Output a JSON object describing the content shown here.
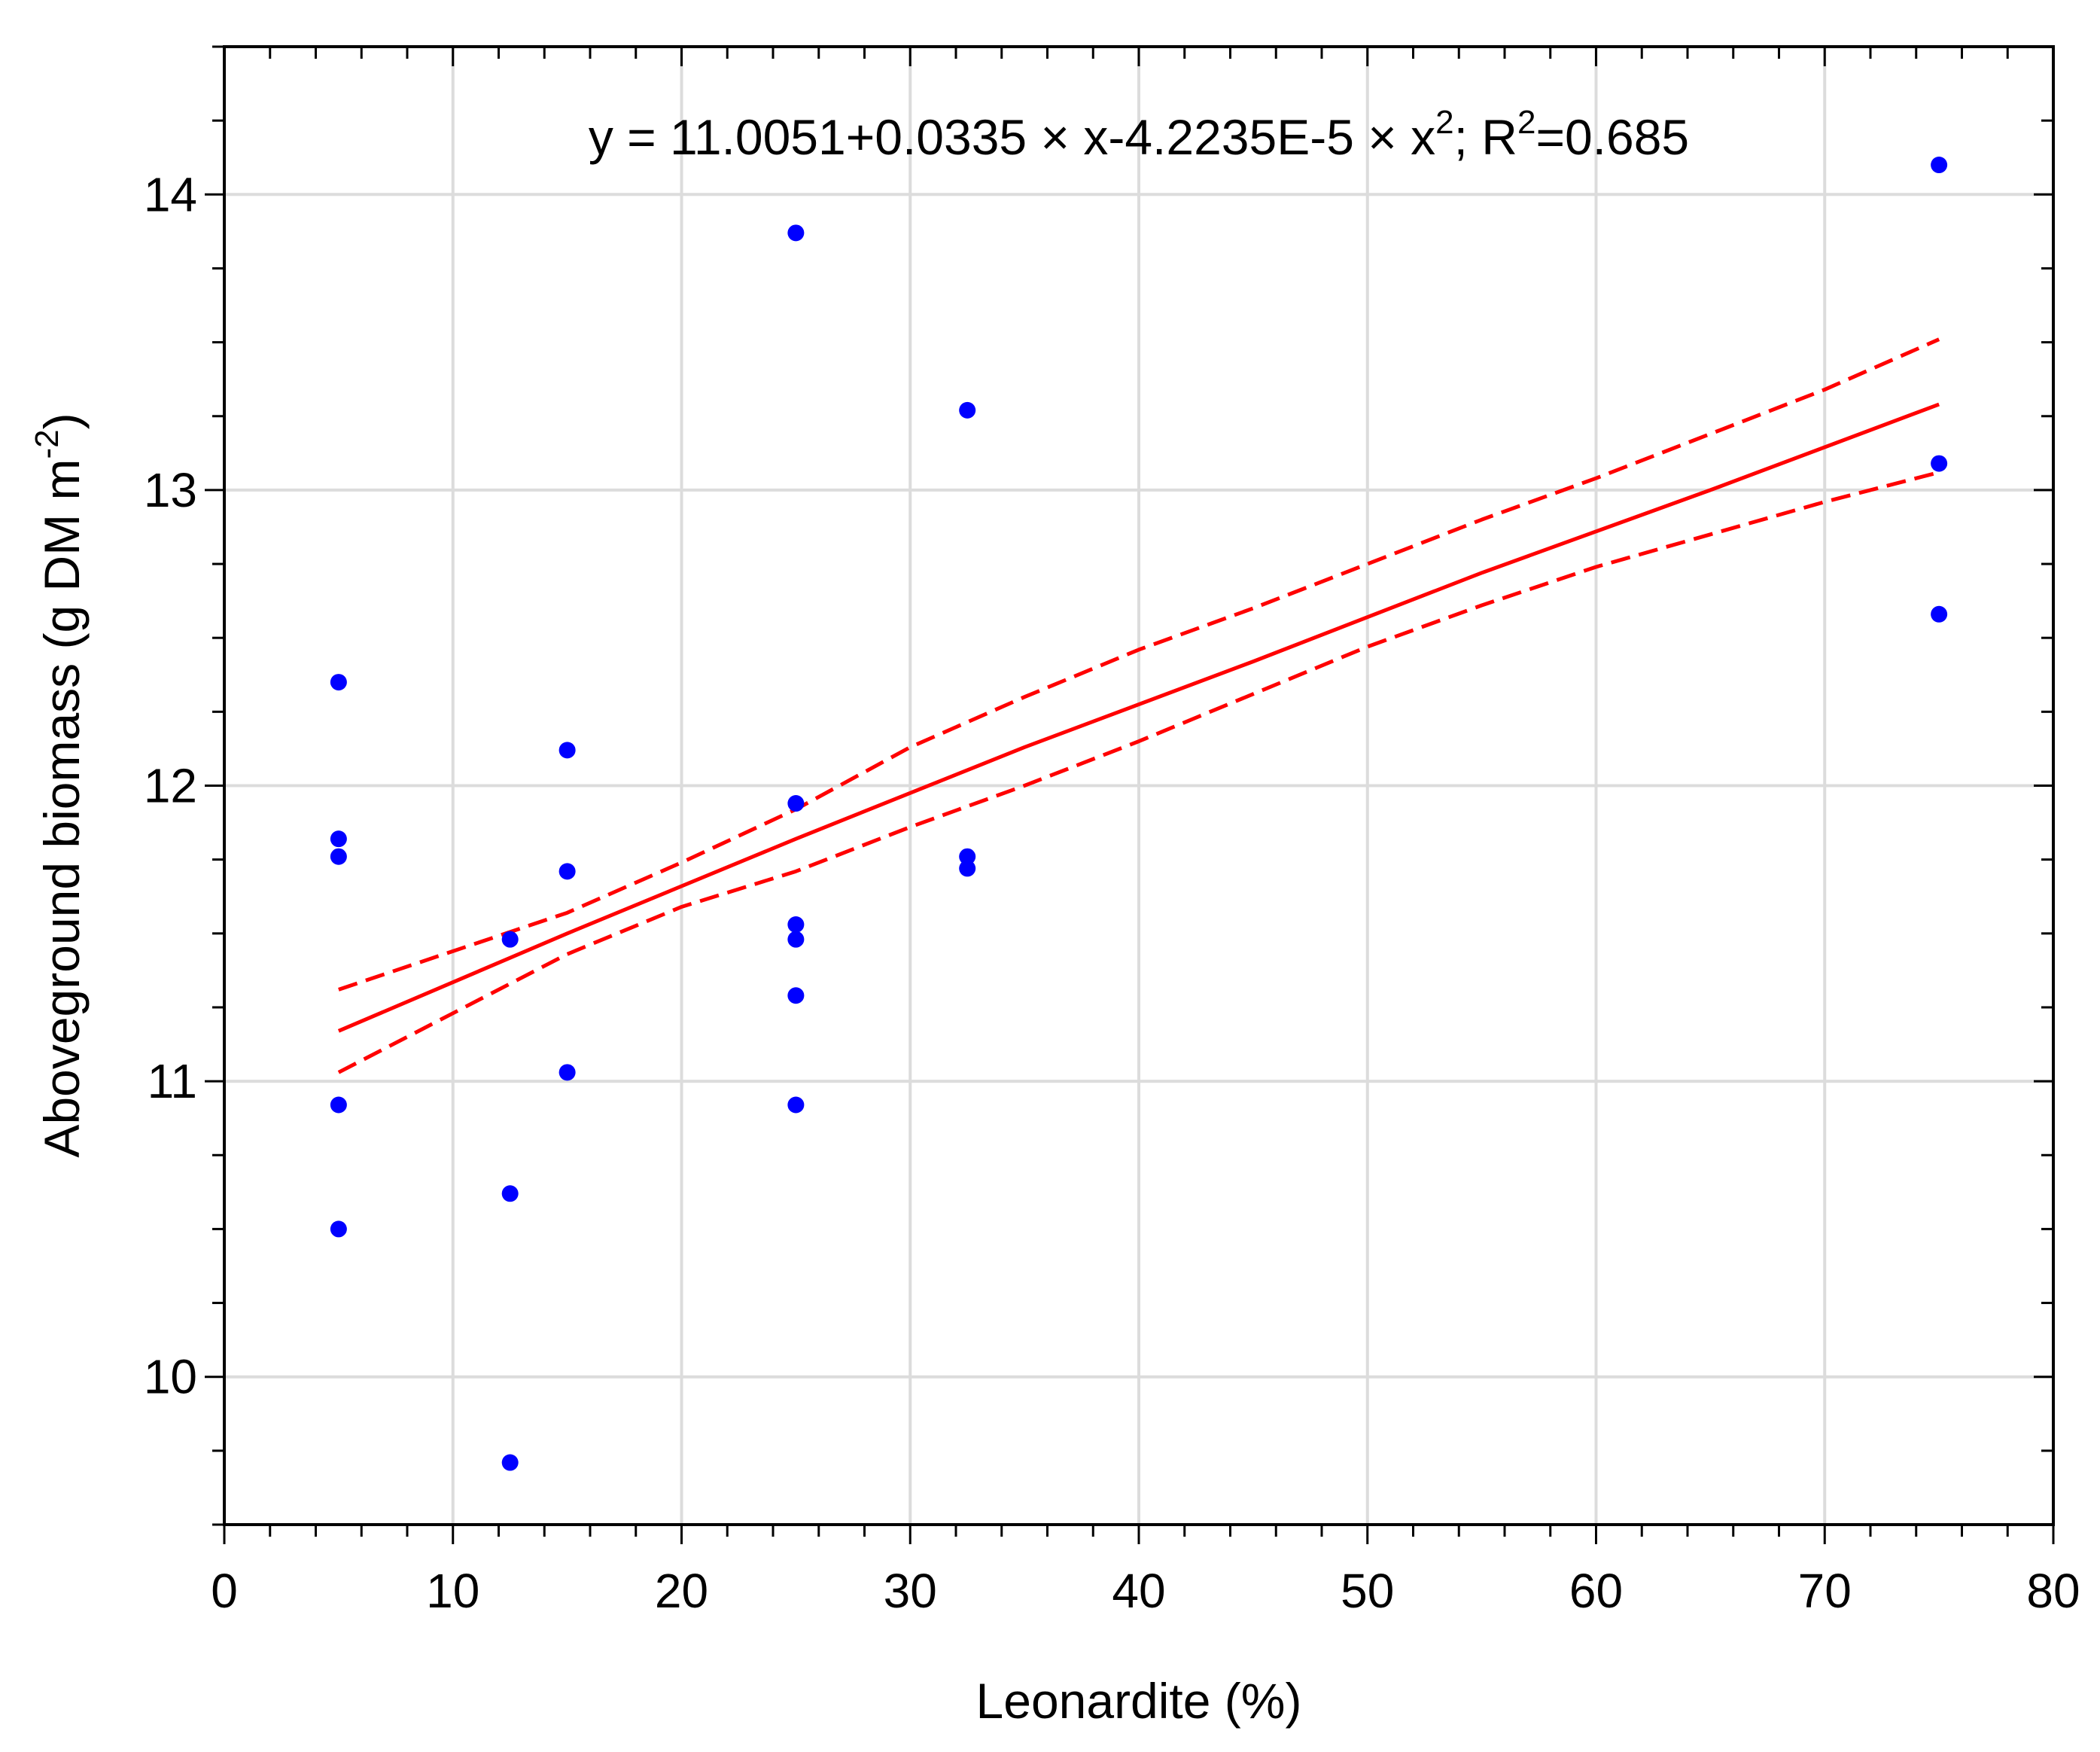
{
  "chart_data": {
    "type": "scatter",
    "title": "",
    "equation": {
      "lead": "y = 11.0051+0.0335 × x-4.2235E-5 × x",
      "exp1": "2",
      "mid": "; R",
      "exp2": "2",
      "tail": "=0.685"
    },
    "xlabel": "Leonardite (%)",
    "ylabel": {
      "main": "Aboveground biomass (g DM m",
      "exp": "-2",
      "close": ")"
    },
    "xlim": [
      0,
      80
    ],
    "ylim": [
      9.5,
      14.5
    ],
    "x_ticks": [
      0,
      10,
      20,
      30,
      40,
      50,
      60,
      70,
      80
    ],
    "y_ticks": [
      10,
      11,
      12,
      13,
      14
    ],
    "x_ticks_label": [
      "0",
      "10",
      "20",
      "30",
      "40",
      "50",
      "60",
      "70",
      "80"
    ],
    "y_ticks_label": [
      "10",
      "11",
      "12",
      "13",
      "14"
    ],
    "grid": true,
    "series": [
      {
        "name": "observations",
        "kind": "scatter",
        "color": "#0000ff",
        "points": [
          {
            "x": 5,
            "y": 12.35
          },
          {
            "x": 5,
            "y": 11.82
          },
          {
            "x": 5,
            "y": 11.76
          },
          {
            "x": 5,
            "y": 10.92
          },
          {
            "x": 5,
            "y": 10.5
          },
          {
            "x": 12.5,
            "y": 11.48
          },
          {
            "x": 12.5,
            "y": 10.62
          },
          {
            "x": 12.5,
            "y": 9.71
          },
          {
            "x": 15,
            "y": 12.12
          },
          {
            "x": 15,
            "y": 11.71
          },
          {
            "x": 15,
            "y": 11.03
          },
          {
            "x": 25,
            "y": 13.87
          },
          {
            "x": 25,
            "y": 11.94
          },
          {
            "x": 25,
            "y": 11.53
          },
          {
            "x": 25,
            "y": 11.48
          },
          {
            "x": 25,
            "y": 11.29
          },
          {
            "x": 25,
            "y": 10.92
          },
          {
            "x": 32.5,
            "y": 13.27
          },
          {
            "x": 32.5,
            "y": 11.76
          },
          {
            "x": 32.5,
            "y": 11.72
          },
          {
            "x": 75,
            "y": 14.1
          },
          {
            "x": 75,
            "y": 13.09
          },
          {
            "x": 75,
            "y": 12.58
          }
        ]
      },
      {
        "name": "fit",
        "kind": "line",
        "color": "#ff0000",
        "style": "solid",
        "x": [
          5,
          15,
          25,
          35,
          45,
          55,
          65,
          75
        ],
        "values": [
          11.17,
          11.5,
          11.82,
          12.13,
          12.42,
          12.72,
          13.0,
          13.29
        ]
      },
      {
        "name": "upper confidence band",
        "kind": "line",
        "color": "#ff0000",
        "style": "dashed",
        "x": [
          5,
          10,
          15,
          20,
          25,
          30,
          35,
          40,
          45,
          50,
          55,
          60,
          65,
          70,
          75
        ],
        "values": [
          11.31,
          11.44,
          11.57,
          11.74,
          11.92,
          12.13,
          12.3,
          12.46,
          12.6,
          12.75,
          12.9,
          13.04,
          13.19,
          13.34,
          13.51
        ]
      },
      {
        "name": "lower confidence band",
        "kind": "line",
        "color": "#ff0000",
        "style": "dashed",
        "x": [
          5,
          10,
          15,
          20,
          25,
          30,
          35,
          40,
          45,
          50,
          55,
          60,
          65,
          70,
          75
        ],
        "values": [
          11.03,
          11.23,
          11.43,
          11.59,
          11.71,
          11.86,
          12.0,
          12.15,
          12.31,
          12.47,
          12.61,
          12.74,
          12.85,
          12.96,
          13.06
        ]
      }
    ]
  }
}
